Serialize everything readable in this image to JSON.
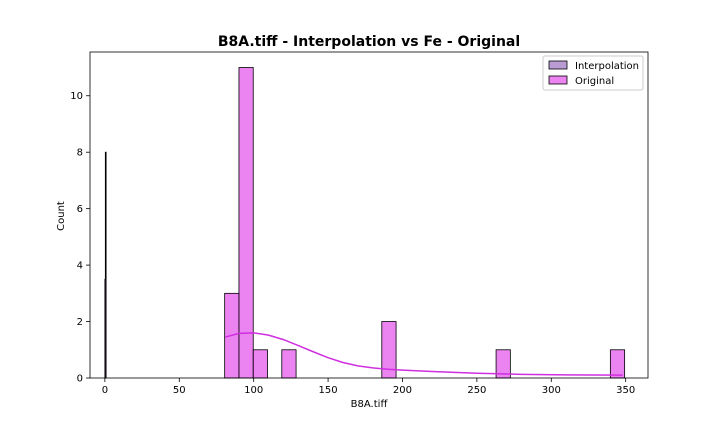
{
  "chart_data": {
    "type": "bar",
    "title": "B8A.tiff - Interpolation vs Fe - Original",
    "xlabel": "B8A.tiff",
    "ylabel": "Count",
    "xlim": [
      -10,
      365
    ],
    "ylim": [
      0,
      11.55
    ],
    "x_ticks": [
      0,
      50,
      100,
      150,
      200,
      250,
      300,
      350
    ],
    "y_ticks": [
      0,
      2,
      4,
      6,
      8,
      10
    ],
    "grid": false,
    "legend_placement": "top-right",
    "series": [
      {
        "name": "Interpolation",
        "color": "#9467bd",
        "bins": [
          {
            "x0": 0.3,
            "x1": 0.7,
            "count": 8
          }
        ]
      },
      {
        "name": "Original",
        "color": "#e040e8",
        "bins": [
          {
            "x0": 0.0,
            "x1": 0.6,
            "count": 3.5
          },
          {
            "x0": 80.5,
            "x1": 90.1,
            "count": 3
          },
          {
            "x0": 90.1,
            "x1": 99.7,
            "count": 11
          },
          {
            "x0": 99.7,
            "x1": 109.3,
            "count": 1
          },
          {
            "x0": 118.9,
            "x1": 128.5,
            "count": 1
          },
          {
            "x0": 186.1,
            "x1": 195.7,
            "count": 2
          },
          {
            "x0": 262.9,
            "x1": 272.5,
            "count": 1
          },
          {
            "x0": 339.7,
            "x1": 349.3,
            "count": 1
          }
        ],
        "kde": {
          "x": [
            81,
            90,
            100,
            110,
            120,
            130,
            140,
            150,
            160,
            170,
            180,
            190,
            200,
            220,
            250,
            280,
            310,
            348
          ],
          "y": [
            1.45,
            1.58,
            1.6,
            1.52,
            1.36,
            1.15,
            0.93,
            0.72,
            0.55,
            0.43,
            0.36,
            0.31,
            0.28,
            0.23,
            0.17,
            0.13,
            0.11,
            0.1
          ]
        }
      }
    ],
    "legend": [
      "Interpolation",
      "Original"
    ]
  }
}
